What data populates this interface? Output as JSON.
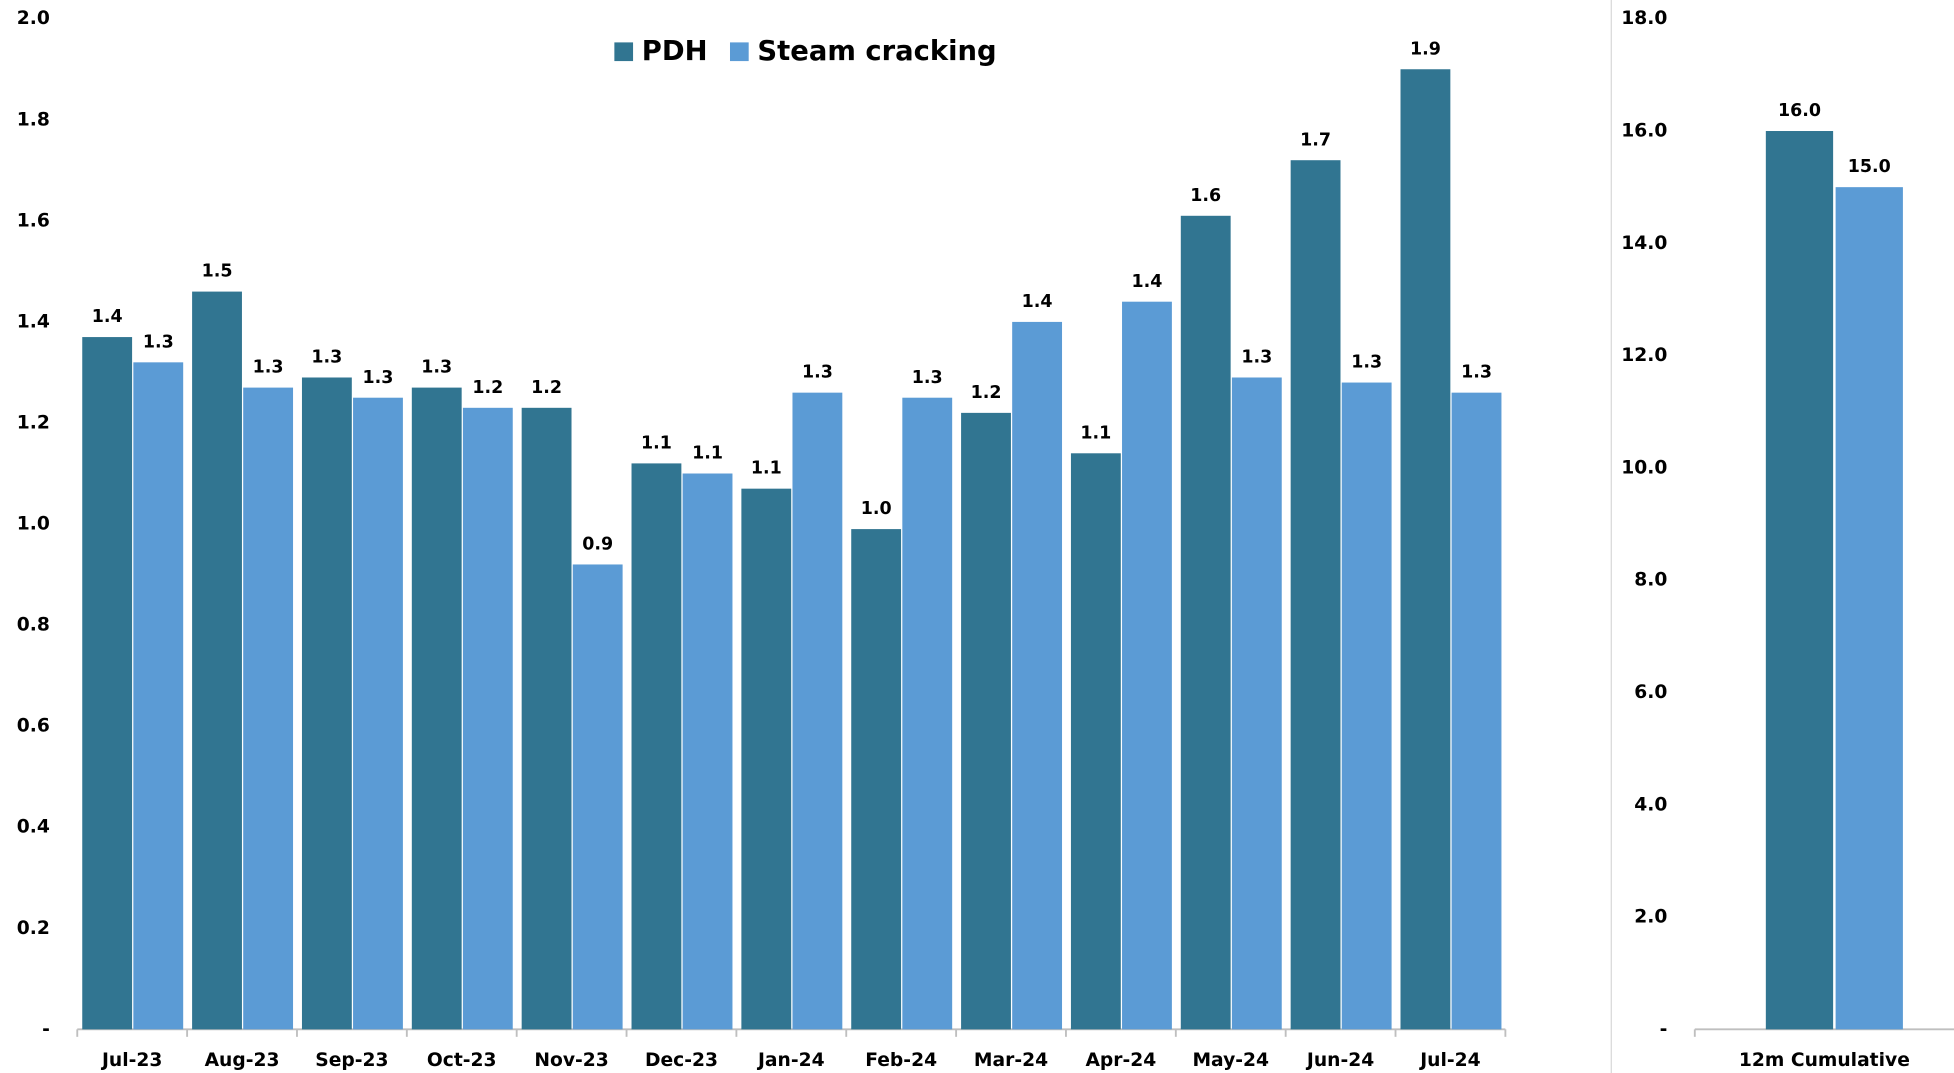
{
  "chart_data": [
    {
      "type": "bar",
      "categories": [
        "Jul-23",
        "Aug-23",
        "Sep-23",
        "Oct-23",
        "Nov-23",
        "Dec-23",
        "Jan-24",
        "Feb-24",
        "Mar-24",
        "Apr-24",
        "May-24",
        "Jun-24",
        "Jul-24"
      ],
      "series": [
        {
          "name": "PDH",
          "color": "#317591",
          "values": [
            1.37,
            1.46,
            1.29,
            1.27,
            1.23,
            1.12,
            1.07,
            0.99,
            1.22,
            1.14,
            1.61,
            1.72,
            1.9
          ],
          "value_labels": [
            "1.4",
            "1.5",
            "1.3",
            "1.3",
            "1.2",
            "1.1",
            "1.1",
            "1.0",
            "1.2",
            "1.1",
            "1.6",
            "1.7",
            "1.9"
          ]
        },
        {
          "name": "Steam cracking",
          "color": "#5b9bd5",
          "values": [
            1.32,
            1.27,
            1.25,
            1.23,
            0.92,
            1.1,
            1.26,
            1.25,
            1.4,
            1.44,
            1.29,
            1.28,
            1.26
          ],
          "value_labels": [
            "1.3",
            "1.3",
            "1.3",
            "1.2",
            "0.9",
            "1.1",
            "1.3",
            "1.3",
            "1.4",
            "1.4",
            "1.3",
            "1.3",
            "1.3"
          ]
        }
      ],
      "ylim": [
        0,
        2
      ],
      "yticks": [
        {
          "value": 0,
          "label": "-"
        },
        {
          "value": 0.2,
          "label": "0.2"
        },
        {
          "value": 0.4,
          "label": "0.4"
        },
        {
          "value": 0.6,
          "label": "0.6"
        },
        {
          "value": 0.8,
          "label": "0.8"
        },
        {
          "value": 1,
          "label": "1.0"
        },
        {
          "value": 1.2,
          "label": "1.2"
        },
        {
          "value": 1.4,
          "label": "1.4"
        },
        {
          "value": 1.6,
          "label": "1.6"
        },
        {
          "value": 1.8,
          "label": "1.8"
        },
        {
          "value": 2,
          "label": "2.0"
        }
      ],
      "legend": "upper center"
    },
    {
      "type": "bar",
      "categories": [
        "12m Cumulative"
      ],
      "series": [
        {
          "color": "#317591",
          "values": [
            16
          ],
          "value_labels": [
            "16.0"
          ]
        },
        {
          "color": "#5b9bd5",
          "values": [
            15
          ],
          "value_labels": [
            "15.0"
          ]
        }
      ],
      "ylim": [
        0,
        18
      ],
      "yticks": [
        {
          "value": 0,
          "label": "-"
        },
        {
          "value": 2,
          "label": "2.0"
        },
        {
          "value": 4,
          "label": "4.0"
        },
        {
          "value": 6,
          "label": "6.0"
        },
        {
          "value": 8,
          "label": "8.0"
        },
        {
          "value": 10,
          "label": "10.0"
        },
        {
          "value": 12,
          "label": "12.0"
        },
        {
          "value": 14,
          "label": "14.0"
        },
        {
          "value": 16,
          "label": "16.0"
        },
        {
          "value": 18,
          "label": "18.0"
        }
      ]
    }
  ]
}
